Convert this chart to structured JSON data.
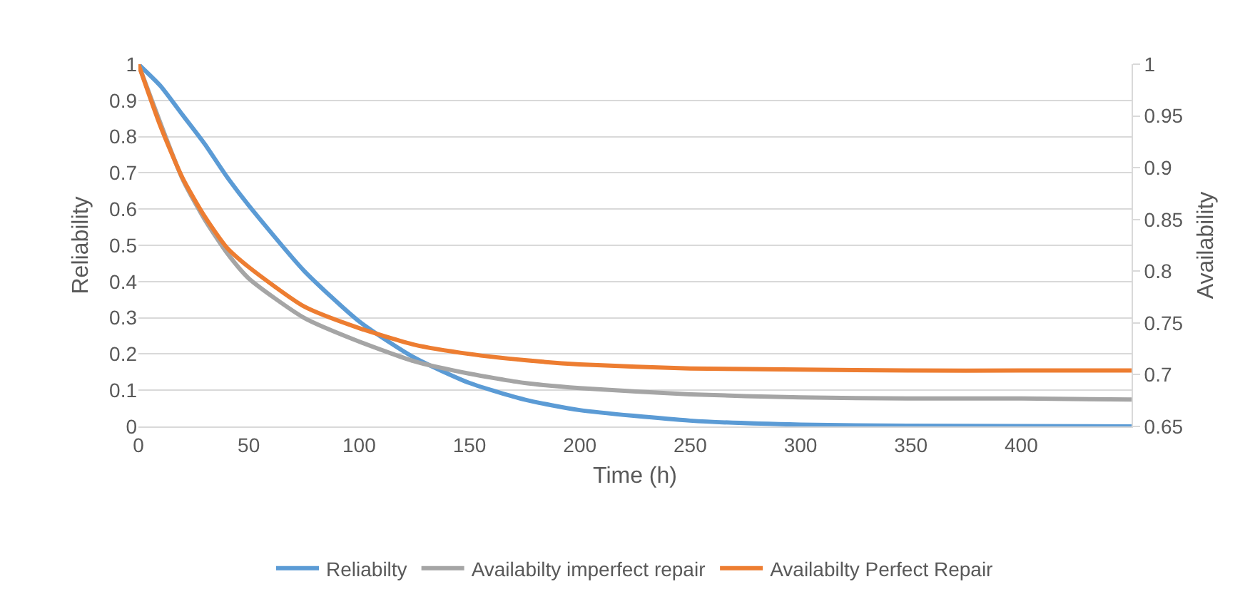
{
  "chart_data": {
    "type": "line",
    "xlabel": "Time (h)",
    "ylabel": "Reliability",
    "y2label": "Availability",
    "x": [
      0,
      10,
      20,
      30,
      40,
      50,
      75,
      100,
      125,
      150,
      175,
      200,
      250,
      300,
      350,
      400,
      450
    ],
    "series": [
      {
        "name": "Reliabilty",
        "color": "#5b9bd5",
        "values": [
          1,
          0.94,
          0.86,
          0.78,
          0.69,
          0.61,
          0.43,
          0.29,
          0.19,
          0.12,
          0.074,
          0.045,
          0.016,
          0.005,
          0.002,
          0.001,
          0
        ]
      },
      {
        "name": "Availabilty imperfect repair",
        "color": "#a5a5a5",
        "axis": "y2",
        "values": [
          1,
          null,
          0.889,
          0.85,
          0.818,
          0.793,
          0.755,
          0.732,
          0.713,
          0.701,
          0.692,
          0.687,
          0.681,
          0.678,
          0.677,
          0.677,
          0.676
        ]
      },
      {
        "name": "Availabilty Perfect Repair",
        "color": "#ed7d31",
        "axis": "y2",
        "values": [
          1,
          0.94,
          0.89,
          0.853,
          0.823,
          0.804,
          0.766,
          0.745,
          0.729,
          0.72,
          0.714,
          0.71,
          0.706,
          0.705,
          0.704,
          0.704,
          0.704
        ]
      }
    ],
    "xlim": [
      0,
      450
    ],
    "xticks": [
      0,
      50,
      100,
      150,
      200,
      250,
      300,
      350,
      400
    ],
    "ylim": [
      0,
      1
    ],
    "yticks": [
      0,
      0.1,
      0.2,
      0.3,
      0.4,
      0.5,
      0.6,
      0.7,
      0.8,
      0.9,
      1
    ],
    "y2lim": [
      0.65,
      1
    ],
    "y2ticks": [
      0.65,
      0.7,
      0.75,
      0.8,
      0.85,
      0.9,
      0.95,
      1
    ],
    "grid": "y",
    "legend": "bottom",
    "marker": "none",
    "line_style": "solid"
  }
}
